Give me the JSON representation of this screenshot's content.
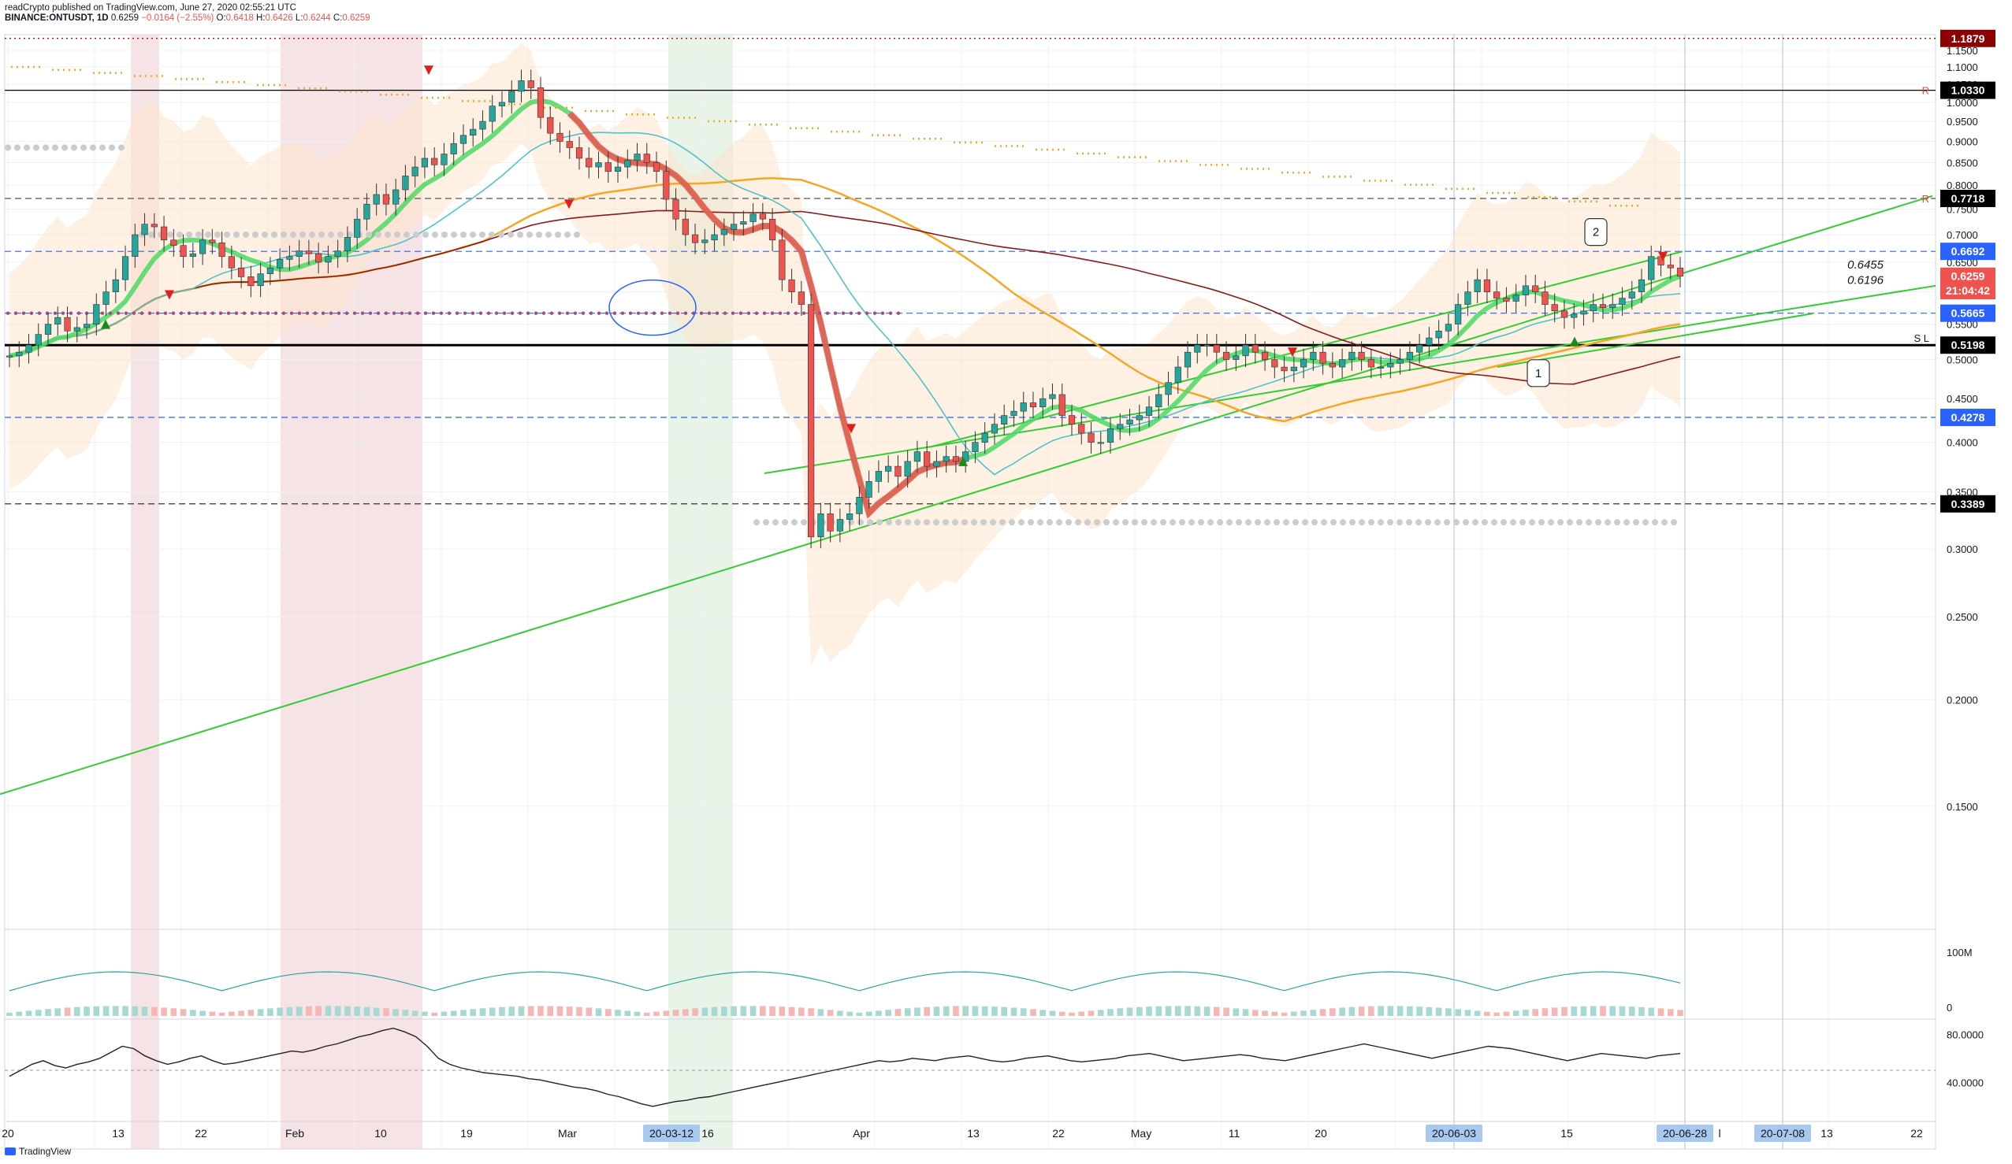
{
  "header": {
    "publisher_line": "readCrypto published on TradingView.com, June 27, 2020 02:55:21 UTC",
    "symbol": "BINANCE:ONTUSDT, 1D",
    "open": "0.6259",
    "change": "−0.0164 (−2.55%)",
    "high": "0.6418",
    "h_prefix": "H:",
    "high_val": "0.6426",
    "l_prefix": "L:",
    "low_val": "0.6244",
    "c_prefix": "C:",
    "close_val": "0.6259",
    "o_prefix": "O:"
  },
  "footer": {
    "brand": "TradingView"
  },
  "colors": {
    "up": "#26a69a",
    "down": "#ef5350",
    "sma_green": "#4cd964",
    "sma_red": "#ef5350",
    "orange": "#f5a623",
    "brown": "#8b1a1a",
    "teal": "#4fc3c7",
    "trend": "#33cc33",
    "blue_dash": "#2962ff",
    "cloud": "#fde3cc"
  },
  "chart_data": {
    "type": "candlestick",
    "price_axis": {
      "min": 0.11,
      "max": 1.2,
      "ticks": [
        "1.1500",
        "1.1000",
        "1.0500",
        "1.0000",
        "0.9500",
        "0.9000",
        "0.8500",
        "0.8000",
        "0.7500",
        "0.7000",
        "0.6500",
        "0.6000",
        "0.5500",
        "0.5000",
        "0.4500",
        "0.4000",
        "0.3500",
        "0.3000",
        "0.2500",
        "0.2000",
        "0.1500"
      ]
    },
    "price_labels": [
      {
        "text": "1.1879",
        "value": 1.1879,
        "color": "#8b0000"
      },
      {
        "text": "1.0330",
        "value": 1.033,
        "color": "#000000"
      },
      {
        "text": "0.7718",
        "value": 0.7718,
        "color": "#000000"
      },
      {
        "text": "0.6692",
        "value": 0.6692,
        "color": "#2962ff"
      },
      {
        "text": "0.6259",
        "value": 0.6259,
        "color": "#ef5350"
      },
      {
        "text": "21:04:42",
        "value": 0.602,
        "color": "#ef5350"
      },
      {
        "text": "0.5665",
        "value": 0.5665,
        "color": "#2962ff"
      },
      {
        "text": "0.5198",
        "value": 0.5198,
        "color": "#000000"
      },
      {
        "text": "0.4278",
        "value": 0.4278,
        "color": "#2962ff"
      },
      {
        "text": "0.3389",
        "value": 0.3389,
        "color": "#000000"
      }
    ],
    "horizontal_lines": [
      {
        "value": 1.1879,
        "style": "dotted",
        "color": "#8b0000"
      },
      {
        "value": 1.033,
        "style": "solid",
        "color": "#000000"
      },
      {
        "value": 0.7718,
        "style": "dashed",
        "color": "#555555"
      },
      {
        "value": 0.6692,
        "style": "dashed",
        "color": "#2962ff"
      },
      {
        "value": 0.5665,
        "style": "dashed",
        "color": "#2962ff"
      },
      {
        "value": 0.5198,
        "style": "solid",
        "color": "#000000"
      },
      {
        "value": 0.4278,
        "style": "dashed",
        "color": "#2962ff"
      },
      {
        "value": 0.3389,
        "style": "dashed",
        "color": "#333333"
      }
    ],
    "annotations": [
      {
        "text": "0.6455",
        "value": 0.6455
      },
      {
        "text": "0.6196",
        "value": 0.6196
      },
      {
        "text": "R",
        "value": 1.033
      },
      {
        "text": "R",
        "value": 0.7718
      },
      {
        "text": "S L",
        "value": 0.5198
      }
    ],
    "callouts": [
      "1",
      "2"
    ],
    "x_axis": {
      "ticks": [
        "20",
        "13",
        "22",
        "Feb",
        "10",
        "19",
        "Mar",
        "20-03-12",
        "16",
        "Apr",
        "13",
        "22",
        "May",
        "11",
        "20",
        "20-06-03",
        "15",
        "20-06-28",
        "l",
        "20-07-08",
        "13",
        "22"
      ],
      "highlighted": [
        "20-03-12",
        "20-06-03",
        "20-06-28",
        "20-07-08"
      ]
    },
    "volume_panel": {
      "ticks": [
        "100M",
        "0"
      ]
    },
    "rsi_panel": {
      "ticks": [
        "80.0000",
        "40.0000"
      ]
    },
    "closes": [
      0.505,
      0.51,
      0.52,
      0.535,
      0.55,
      0.56,
      0.54,
      0.545,
      0.55,
      0.58,
      0.6,
      0.62,
      0.66,
      0.7,
      0.72,
      0.715,
      0.69,
      0.68,
      0.66,
      0.665,
      0.69,
      0.685,
      0.66,
      0.64,
      0.625,
      0.61,
      0.63,
      0.64,
      0.655,
      0.66,
      0.67,
      0.665,
      0.65,
      0.66,
      0.67,
      0.695,
      0.73,
      0.76,
      0.78,
      0.76,
      0.79,
      0.82,
      0.84,
      0.86,
      0.845,
      0.87,
      0.895,
      0.915,
      0.93,
      0.95,
      0.99,
      1.0,
      1.03,
      1.06,
      1.04,
      0.96,
      0.92,
      0.9,
      0.885,
      0.86,
      0.84,
      0.85,
      0.83,
      0.84,
      0.855,
      0.87,
      0.85,
      0.83,
      0.77,
      0.73,
      0.7,
      0.685,
      0.69,
      0.7,
      0.71,
      0.72,
      0.725,
      0.74,
      0.73,
      0.69,
      0.62,
      0.6,
      0.58,
      0.31,
      0.33,
      0.315,
      0.325,
      0.33,
      0.345,
      0.36,
      0.37,
      0.375,
      0.365,
      0.38,
      0.39,
      0.375,
      0.38,
      0.385,
      0.38,
      0.39,
      0.4,
      0.41,
      0.42,
      0.43,
      0.435,
      0.445,
      0.44,
      0.45,
      0.455,
      0.43,
      0.42,
      0.41,
      0.4,
      0.4,
      0.415,
      0.42,
      0.425,
      0.43,
      0.44,
      0.455,
      0.47,
      0.49,
      0.51,
      0.52,
      0.52,
      0.51,
      0.5,
      0.505,
      0.52,
      0.51,
      0.5,
      0.49,
      0.485,
      0.49,
      0.5,
      0.51,
      0.495,
      0.49,
      0.5,
      0.51,
      0.5,
      0.49,
      0.49,
      0.495,
      0.5,
      0.51,
      0.52,
      0.53,
      0.54,
      0.55,
      0.58,
      0.6,
      0.62,
      0.6,
      0.59,
      0.585,
      0.595,
      0.61,
      0.6,
      0.58,
      0.57,
      0.56,
      0.565,
      0.57,
      0.58,
      0.575,
      0.58,
      0.59,
      0.6,
      0.62,
      0.66,
      0.645,
      0.64,
      0.6259
    ],
    "rsi": [
      45,
      50,
      55,
      58,
      54,
      52,
      55,
      57,
      60,
      65,
      70,
      68,
      62,
      58,
      55,
      57,
      60,
      62,
      58,
      55,
      56,
      58,
      60,
      62,
      64,
      66,
      65,
      67,
      70,
      72,
      75,
      78,
      80,
      83,
      85,
      82,
      78,
      70,
      60,
      55,
      52,
      50,
      48,
      47,
      46,
      45,
      43,
      42,
      40,
      38,
      36,
      35,
      33,
      30,
      28,
      25,
      22,
      20,
      22,
      24,
      25,
      27,
      28,
      30,
      32,
      34,
      36,
      38,
      40,
      42,
      44,
      46,
      48,
      50,
      52,
      54,
      56,
      58,
      57,
      58,
      60,
      59,
      58,
      60,
      61,
      62,
      60,
      58,
      57,
      58,
      60,
      61,
      62,
      60,
      58,
      57,
      58,
      59,
      60,
      62,
      63,
      64,
      62,
      60,
      58,
      59,
      60,
      61,
      62,
      63,
      62,
      60,
      59,
      58,
      60,
      62,
      64,
      66,
      68,
      70,
      72,
      70,
      68,
      66,
      64,
      62,
      60,
      62,
      64,
      66,
      68,
      70,
      69,
      68,
      66,
      64,
      62,
      60,
      58,
      60,
      62,
      64,
      63,
      62,
      61,
      60,
      62,
      63,
      64
    ]
  }
}
